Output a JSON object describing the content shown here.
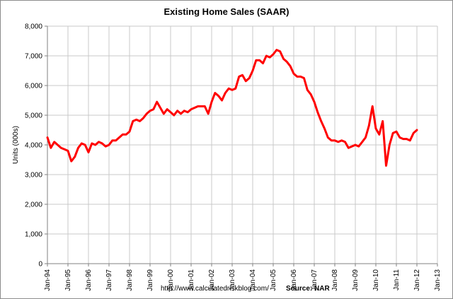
{
  "page": {
    "url_text": "http://www.calculatedriskblog.com/",
    "source_text": "Source: NAR"
  },
  "chart_data": {
    "type": "line",
    "title": "Existing Home Sales (SAAR)",
    "xlabel": "",
    "ylabel": "Units (000s)",
    "ylim": [
      0,
      8000
    ],
    "xlim": [
      "1994-01",
      "2013-01"
    ],
    "yticks": [
      "0",
      "1,000",
      "2,000",
      "3,000",
      "4,000",
      "5,000",
      "6,000",
      "7,000",
      "8,000"
    ],
    "xticks": [
      "Jan-94",
      "Jan-95",
      "Jan-96",
      "Jan-97",
      "Jan-98",
      "Jan-99",
      "Jan-00",
      "Jan-01",
      "Jan-02",
      "Jan-03",
      "Jan-04",
      "Jan-05",
      "Jan-06",
      "Jan-07",
      "Jan-08",
      "Jan-09",
      "Jan-10",
      "Jan-11",
      "Jan-12",
      "Jan-13"
    ],
    "grid": true,
    "line_color": "#ff0000",
    "series": [
      {
        "x": [
          "1994-01",
          "1994-03",
          "1994-05",
          "1994-07",
          "1994-09",
          "1994-11",
          "1995-01",
          "1995-03",
          "1995-05",
          "1995-07",
          "1995-09",
          "1995-11",
          "1996-01",
          "1996-03",
          "1996-05",
          "1996-07",
          "1996-09",
          "1996-11",
          "1997-01",
          "1997-03",
          "1997-05",
          "1997-07",
          "1997-09",
          "1997-11",
          "1998-01",
          "1998-03",
          "1998-05",
          "1998-07",
          "1998-09",
          "1998-11",
          "1999-01",
          "1999-03",
          "1999-05",
          "1999-07",
          "1999-09",
          "1999-11",
          "2000-01",
          "2000-03",
          "2000-05",
          "2000-07",
          "2000-09",
          "2000-11",
          "2001-01",
          "2001-03",
          "2001-05",
          "2001-07",
          "2001-09",
          "2001-11",
          "2002-01",
          "2002-03",
          "2002-05",
          "2002-07",
          "2002-09",
          "2002-11",
          "2003-01",
          "2003-03",
          "2003-05",
          "2003-07",
          "2003-09",
          "2003-11",
          "2004-01",
          "2004-03",
          "2004-05",
          "2004-07",
          "2004-09",
          "2004-11",
          "2005-01",
          "2005-03",
          "2005-05",
          "2005-07",
          "2005-09",
          "2005-11",
          "2006-01",
          "2006-03",
          "2006-05",
          "2006-07",
          "2006-09",
          "2006-11",
          "2007-01",
          "2007-03",
          "2007-05",
          "2007-07",
          "2007-09",
          "2007-11",
          "2008-01",
          "2008-03",
          "2008-05",
          "2008-07",
          "2008-09",
          "2008-11",
          "2009-01",
          "2009-03",
          "2009-05",
          "2009-07",
          "2009-09",
          "2009-11",
          "2010-01",
          "2010-03",
          "2010-05",
          "2010-07",
          "2010-09",
          "2010-11",
          "2011-01",
          "2011-03",
          "2011-05",
          "2011-07",
          "2011-09",
          "2011-11",
          "2012-01"
        ],
        "values": [
          4250,
          3900,
          4100,
          4000,
          3900,
          3850,
          3800,
          3450,
          3600,
          3900,
          4050,
          4000,
          3750,
          4050,
          4000,
          4100,
          4050,
          3950,
          4000,
          4150,
          4150,
          4250,
          4350,
          4350,
          4450,
          4800,
          4850,
          4800,
          4900,
          5050,
          5150,
          5200,
          5450,
          5250,
          5050,
          5200,
          5100,
          5000,
          5150,
          5050,
          5150,
          5100,
          5200,
          5250,
          5300,
          5300,
          5300,
          5050,
          5450,
          5750,
          5650,
          5500,
          5750,
          5900,
          5850,
          5900,
          6300,
          6350,
          6150,
          6250,
          6500,
          6850,
          6850,
          6750,
          7000,
          6950,
          7050,
          7200,
          7150,
          6900,
          6800,
          6650,
          6400,
          6300,
          6300,
          6250,
          5850,
          5700,
          5450,
          5100,
          4800,
          4550,
          4250,
          4150,
          4150,
          4100,
          4150,
          4100,
          3900,
          3950,
          4000,
          3950,
          4100,
          4250,
          4650,
          5300,
          4550,
          4350,
          4800,
          3300,
          4000,
          4400,
          4450,
          4250,
          4200,
          4200,
          4150,
          4400,
          4500
        ]
      }
    ]
  }
}
